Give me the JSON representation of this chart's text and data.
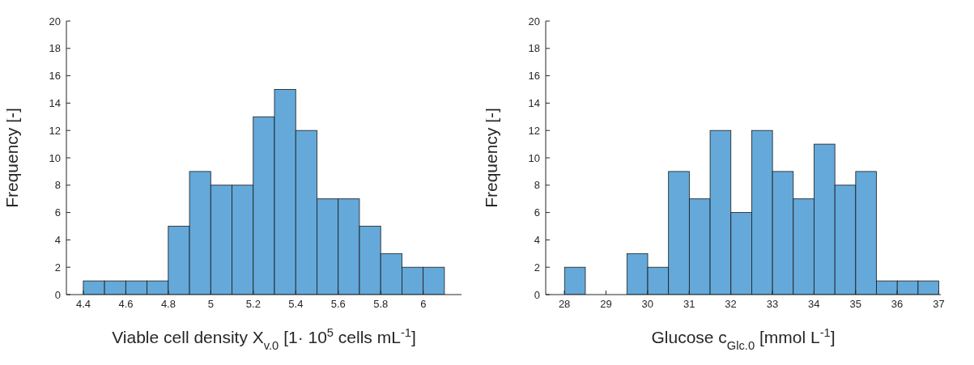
{
  "chart_data": [
    {
      "type": "histogram",
      "xlabel": "Viable cell density  X$_{v.0}$ [1· 10$^{5}$ cells mL$^{-1}$]",
      "ylabel": "Frequency [-]",
      "color": "#64a9d9",
      "bins": [
        4.4,
        4.5,
        4.6,
        4.7,
        4.8,
        4.9,
        5.0,
        5.1,
        5.2,
        5.3,
        5.4,
        5.5,
        5.6,
        5.7,
        5.8,
        5.9,
        6.0,
        6.1
      ],
      "values": [
        1,
        1,
        1,
        1,
        5,
        9,
        8,
        8,
        13,
        15,
        12,
        7,
        7,
        5,
        3,
        2,
        2
      ],
      "xlim": [
        4.32,
        6.18
      ],
      "xticks": [
        4.4,
        4.6,
        4.8,
        5,
        5.2,
        5.4,
        5.6,
        5.8,
        6
      ],
      "ylim": [
        0,
        20
      ],
      "yticks": [
        0,
        2,
        4,
        6,
        8,
        10,
        12,
        14,
        16,
        18,
        20
      ],
      "grid": false
    },
    {
      "type": "histogram",
      "xlabel": "Glucose  c$_{Glc.0}$ [mmol L$^{-1}$]",
      "ylabel": "Frequency [-]",
      "color": "#64a9d9",
      "bins": [
        28,
        28.5,
        29,
        29.5,
        30,
        30.5,
        31,
        31.5,
        32,
        32.5,
        33,
        33.5,
        34,
        34.5,
        35,
        35.5,
        36,
        36.5,
        37
      ],
      "values": [
        2,
        0,
        0,
        3,
        2,
        9,
        7,
        12,
        6,
        12,
        9,
        7,
        11,
        8,
        9,
        1,
        1,
        1
      ],
      "xlim": [
        27.55,
        37.05
      ],
      "xticks": [
        28,
        29,
        30,
        31,
        32,
        33,
        34,
        35,
        36,
        37
      ],
      "ylim": [
        0,
        20
      ],
      "yticks": [
        0,
        2,
        4,
        6,
        8,
        10,
        12,
        14,
        16,
        18,
        20
      ],
      "grid": false
    }
  ]
}
